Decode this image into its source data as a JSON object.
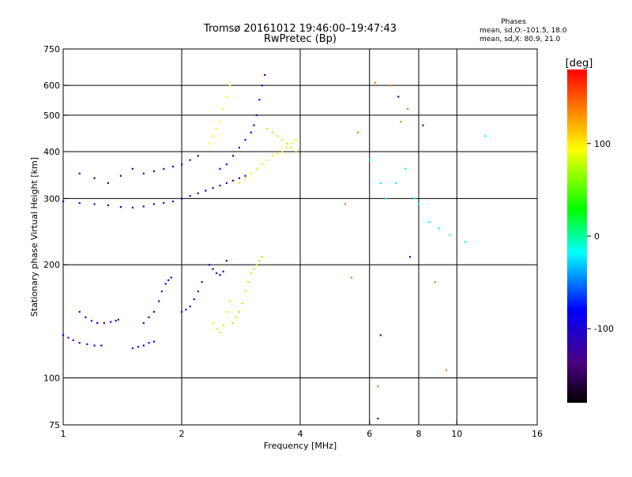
{
  "title": "Tromsø 20161012 19:46:00–19:47:43",
  "subtitle": "RwPretec (Bp)",
  "phase_info": {
    "heading": "Phases",
    "line1": "mean, sd,O:–101.5, 18.0",
    "line2": "mean, sd,X:  80.9, 21.0"
  },
  "chart_data": {
    "type": "scatter",
    "xlabel": "Frequency [MHz]",
    "ylabel": "Stationary phase Virtual Height [km]",
    "xscale": "log",
    "yscale": "log",
    "xlim": [
      1,
      16
    ],
    "ylim": [
      75,
      750
    ],
    "x_ticks": [
      1,
      2,
      4,
      6,
      8,
      10,
      16
    ],
    "y_ticks": [
      75,
      100,
      200,
      300,
      400,
      500,
      600,
      750
    ],
    "grid_x": [
      2,
      4,
      6,
      8,
      10
    ],
    "grid_y": [
      100,
      200,
      300,
      400,
      500,
      600
    ],
    "colorbar": {
      "label": "[deg]",
      "range": [
        -180,
        180
      ],
      "ticks": [
        100,
        0,
        -100
      ],
      "colors": [
        "#000000",
        "#4b0082",
        "#0000ff",
        "#00ffff",
        "#00ff00",
        "#ffff00",
        "#ff8000",
        "#ff0000"
      ]
    },
    "series": [
      {
        "trace": "O-low-1",
        "phase": -100,
        "points": [
          [
            1.0,
            130
          ],
          [
            1.03,
            128
          ],
          [
            1.06,
            126
          ],
          [
            1.1,
            124
          ],
          [
            1.15,
            123
          ],
          [
            1.2,
            122
          ],
          [
            1.25,
            122
          ]
        ]
      },
      {
        "trace": "O-low-2",
        "phase": -102,
        "points": [
          [
            1.1,
            150
          ],
          [
            1.14,
            145
          ],
          [
            1.18,
            142
          ],
          [
            1.22,
            140
          ],
          [
            1.27,
            140
          ],
          [
            1.32,
            141
          ],
          [
            1.36,
            142
          ],
          [
            1.38,
            143
          ]
        ]
      },
      {
        "trace": "O-low-3",
        "phase": -98,
        "points": [
          [
            1.5,
            120
          ],
          [
            1.55,
            121
          ],
          [
            1.6,
            122
          ],
          [
            1.65,
            124
          ],
          [
            1.7,
            125
          ]
        ]
      },
      {
        "trace": "O-low-4",
        "phase": -105,
        "points": [
          [
            1.6,
            140
          ],
          [
            1.65,
            145
          ],
          [
            1.7,
            150
          ],
          [
            1.75,
            160
          ],
          [
            1.78,
            170
          ],
          [
            1.82,
            178
          ],
          [
            1.85,
            182
          ],
          [
            1.88,
            185
          ]
        ]
      },
      {
        "trace": "O-low-5",
        "phase": -100,
        "points": [
          [
            2.0,
            150
          ],
          [
            2.05,
            152
          ],
          [
            2.1,
            155
          ],
          [
            2.15,
            162
          ],
          [
            2.2,
            170
          ],
          [
            2.25,
            180
          ]
        ]
      },
      {
        "trace": "O-low-6",
        "phase": -110,
        "points": [
          [
            2.35,
            200
          ],
          [
            2.4,
            195
          ],
          [
            2.45,
            190
          ],
          [
            2.5,
            188
          ],
          [
            2.55,
            192
          ],
          [
            2.6,
            205
          ]
        ]
      },
      {
        "trace": "X-low-1",
        "phase": 80,
        "points": [
          [
            2.4,
            140
          ],
          [
            2.45,
            135
          ],
          [
            2.5,
            132
          ],
          [
            2.55,
            138
          ],
          [
            2.6,
            150
          ],
          [
            2.65,
            160
          ]
        ]
      },
      {
        "trace": "X-low-2",
        "phase": 70,
        "points": [
          [
            2.7,
            140
          ],
          [
            2.75,
            145
          ],
          [
            2.8,
            150
          ],
          [
            2.85,
            158
          ],
          [
            2.9,
            170
          ],
          [
            2.95,
            180
          ],
          [
            3.0,
            190
          ],
          [
            3.05,
            195
          ],
          [
            3.1,
            200
          ],
          [
            3.15,
            205
          ],
          [
            3.2,
            210
          ]
        ]
      },
      {
        "trace": "O-F-1",
        "phase": -105,
        "points": [
          [
            1.0,
            295
          ],
          [
            1.1,
            292
          ],
          [
            1.2,
            290
          ],
          [
            1.3,
            288
          ],
          [
            1.4,
            285
          ],
          [
            1.5,
            284
          ],
          [
            1.6,
            286
          ],
          [
            1.7,
            290
          ],
          [
            1.8,
            292
          ],
          [
            1.9,
            295
          ],
          [
            2.0,
            300
          ],
          [
            2.1,
            305
          ],
          [
            2.2,
            310
          ],
          [
            2.3,
            315
          ],
          [
            2.4,
            320
          ],
          [
            2.5,
            325
          ],
          [
            2.6,
            330
          ],
          [
            2.7,
            335
          ],
          [
            2.8,
            340
          ],
          [
            2.9,
            345
          ]
        ]
      },
      {
        "trace": "O-F-2",
        "phase": -110,
        "points": [
          [
            1.1,
            350
          ],
          [
            1.2,
            340
          ],
          [
            1.3,
            330
          ],
          [
            1.4,
            345
          ],
          [
            1.5,
            360
          ],
          [
            1.6,
            350
          ],
          [
            1.7,
            355
          ],
          [
            1.8,
            360
          ],
          [
            1.9,
            365
          ],
          [
            2.0,
            370
          ],
          [
            2.1,
            380
          ],
          [
            2.2,
            390
          ]
        ]
      },
      {
        "trace": "O-F-3",
        "phase": -95,
        "points": [
          [
            2.5,
            360
          ],
          [
            2.6,
            370
          ],
          [
            2.7,
            390
          ],
          [
            2.8,
            410
          ],
          [
            2.9,
            430
          ],
          [
            3.0,
            450
          ],
          [
            3.05,
            470
          ],
          [
            3.1,
            500
          ],
          [
            3.15,
            550
          ],
          [
            3.2,
            600
          ],
          [
            3.25,
            640
          ]
        ]
      },
      {
        "trace": "X-F-1",
        "phase": 95,
        "points": [
          [
            2.35,
            420
          ],
          [
            2.4,
            440
          ],
          [
            2.45,
            460
          ],
          [
            2.5,
            480
          ],
          [
            2.55,
            520
          ],
          [
            2.6,
            560
          ],
          [
            2.65,
            600
          ]
        ]
      },
      {
        "trace": "X-F-2",
        "phase": 85,
        "points": [
          [
            2.8,
            330
          ],
          [
            2.9,
            340
          ],
          [
            3.0,
            350
          ],
          [
            3.1,
            360
          ],
          [
            3.2,
            370
          ],
          [
            3.3,
            380
          ],
          [
            3.4,
            390
          ],
          [
            3.5,
            395
          ],
          [
            3.6,
            400
          ],
          [
            3.7,
            410
          ],
          [
            3.8,
            420
          ],
          [
            3.9,
            430
          ]
        ]
      },
      {
        "trace": "X-F-3",
        "phase": 75,
        "points": [
          [
            3.3,
            460
          ],
          [
            3.4,
            450
          ],
          [
            3.5,
            440
          ],
          [
            3.6,
            430
          ],
          [
            3.7,
            420
          ],
          [
            3.8,
            410
          ],
          [
            3.9,
            400
          ]
        ]
      },
      {
        "trace": "scatter",
        "phase": -20,
        "points": [
          [
            6.0,
            380
          ],
          [
            6.4,
            330
          ],
          [
            6.6,
            300
          ],
          [
            7.0,
            330
          ],
          [
            7.4,
            360
          ],
          [
            7.8,
            300
          ],
          [
            8.0,
            290
          ],
          [
            8.5,
            260
          ],
          [
            9.0,
            250
          ],
          [
            9.6,
            240
          ],
          [
            10.5,
            230
          ],
          [
            11.8,
            440
          ]
        ]
      },
      {
        "trace": "scatter-2",
        "phase": 140,
        "points": [
          [
            5.2,
            290
          ],
          [
            5.6,
            450
          ],
          [
            6.2,
            610
          ],
          [
            6.8,
            600
          ],
          [
            7.2,
            480
          ],
          [
            7.5,
            520
          ],
          [
            8.8,
            180
          ],
          [
            9.4,
            105
          ],
          [
            6.3,
            95
          ],
          [
            5.4,
            185
          ]
        ]
      },
      {
        "trace": "scatter-3",
        "phase": -120,
        "points": [
          [
            6.3,
            78
          ],
          [
            6.4,
            130
          ],
          [
            7.1,
            560
          ],
          [
            7.6,
            210
          ],
          [
            8.2,
            470
          ]
        ]
      }
    ]
  }
}
